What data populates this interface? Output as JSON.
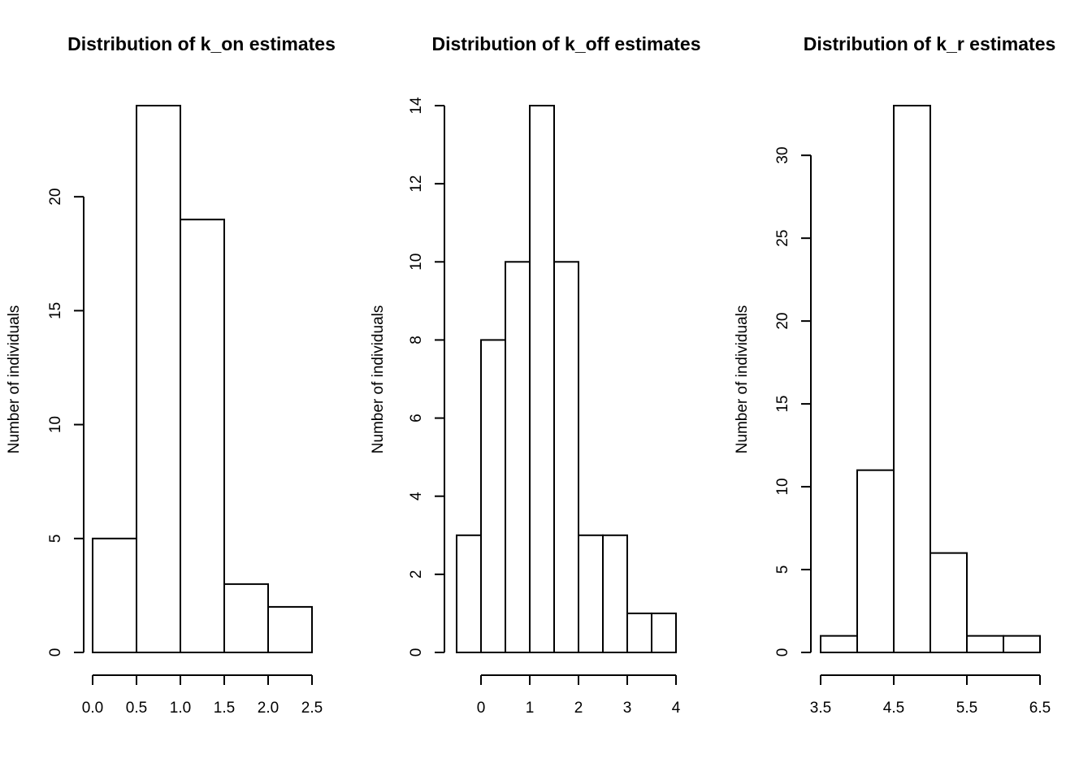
{
  "chart_data": [
    {
      "type": "bar",
      "title": "Distribution of k_on estimates",
      "xlabel": "",
      "ylabel": "Number of individuals",
      "bin_edges": [
        0.0,
        0.5,
        1.0,
        1.5,
        2.0,
        2.5
      ],
      "values": [
        5,
        24,
        19,
        3,
        2
      ],
      "xticks": [
        "0.0",
        "0.5",
        "1.0",
        "1.5",
        "2.0",
        "2.5"
      ],
      "xtick_values": [
        0.0,
        0.5,
        1.0,
        1.5,
        2.0,
        2.5
      ],
      "yticks": [
        0,
        5,
        10,
        15,
        20
      ],
      "xlim": [
        0.0,
        2.5
      ],
      "ylim": [
        0,
        24
      ],
      "grid": false
    },
    {
      "type": "bar",
      "title": "Distribution of k_off estimates",
      "xlabel": "",
      "ylabel": "Number of individuals",
      "bin_edges": [
        -0.5,
        0.0,
        0.5,
        1.0,
        1.5,
        2.0,
        2.5,
        3.0,
        3.5,
        4.0
      ],
      "values": [
        3,
        8,
        10,
        14,
        10,
        3,
        3,
        1,
        1
      ],
      "xticks": [
        "0",
        "1",
        "2",
        "3",
        "4"
      ],
      "xtick_values": [
        0,
        1,
        2,
        3,
        4
      ],
      "yticks": [
        0,
        2,
        4,
        6,
        8,
        10,
        12,
        14
      ],
      "xlim": [
        -0.5,
        4.0
      ],
      "ylim": [
        0,
        14
      ],
      "grid": false
    },
    {
      "type": "bar",
      "title": "Distribution of k_r estimates",
      "xlabel": "",
      "ylabel": "Number of individuals",
      "bin_edges": [
        3.5,
        4.0,
        4.5,
        5.0,
        5.5,
        6.0,
        6.5
      ],
      "values": [
        1,
        11,
        33,
        6,
        1,
        1
      ],
      "xticks": [
        "3.5",
        "4.5",
        "5.5",
        "6.5"
      ],
      "xtick_values": [
        3.5,
        4.5,
        5.5,
        6.5
      ],
      "yticks": [
        0,
        5,
        10,
        15,
        20,
        25,
        30
      ],
      "xlim": [
        3.5,
        6.5
      ],
      "ylim": [
        0,
        33
      ],
      "grid": false
    }
  ]
}
